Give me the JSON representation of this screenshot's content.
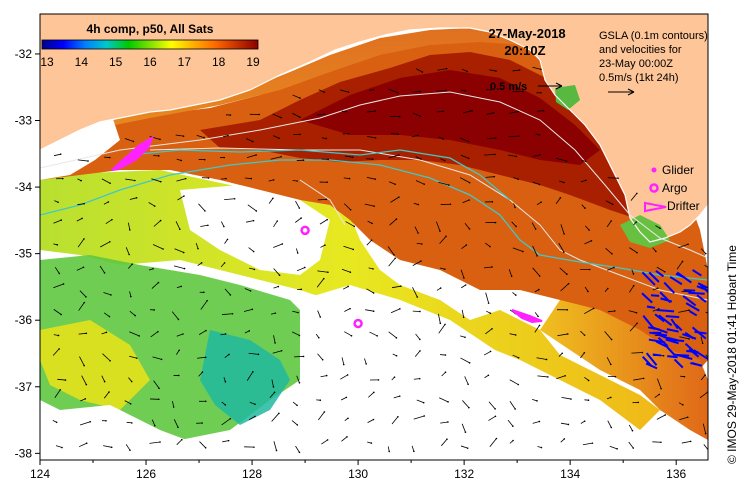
{
  "colorbar": {
    "title": "4h comp, p50, All Sats",
    "ticks": [
      "13",
      "14",
      "15",
      "16",
      "17",
      "18",
      "19"
    ],
    "colors": [
      "#00008b",
      "#0000ff",
      "#0080ff",
      "#00c8c8",
      "#00c800",
      "#80e000",
      "#ffff00",
      "#ffb000",
      "#ff6a00",
      "#c83200",
      "#8b0000"
    ]
  },
  "date_label": "27-May-2018",
  "time_label": "20:10Z",
  "gsla_note": {
    "line1": "GSLA (0.1m contours)",
    "line2": "and velocities for",
    "line3": "23-May 00:00Z",
    "line4": "0.5m/s (1kt 24h)"
  },
  "velocity_scale_label": "0.5 m/s",
  "legend": {
    "glider": "Glider",
    "argo": "Argo",
    "drifter": "Drifter"
  },
  "axes": {
    "x_ticks": [
      "124",
      "126",
      "128",
      "130",
      "132",
      "134",
      "136"
    ],
    "y_ticks": [
      "-32",
      "-33",
      "-34",
      "-35",
      "-36",
      "-37",
      "-38"
    ]
  },
  "side_label": "© IMOS 29-May-2018 01:41 Hobart Time",
  "colors": {
    "land": "#fdc598",
    "cloud": "#ffffff",
    "contour": "#e8e8e8",
    "cyan_contour": "#40c8c8",
    "marker": "#ff22ff",
    "drifter_vector": "#0000ff"
  },
  "argo_floats": [
    {
      "lon": 129.0,
      "lat": -34.65
    },
    {
      "lon": 130.0,
      "lat": -36.05
    }
  ]
}
